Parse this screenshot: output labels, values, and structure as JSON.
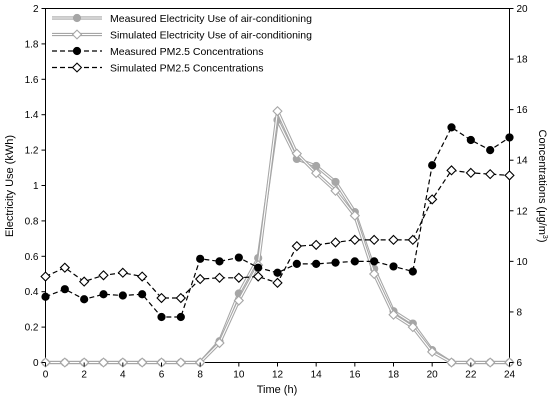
{
  "chart_data": {
    "type": "line",
    "xlabel": "Time (h)",
    "ylabel_left": "Electricity Use (kWh)",
    "ylabel_right_main": "Concentrations (μg/m",
    "ylabel_right_sup": "3",
    "ylabel_right_close": ")",
    "xlim": [
      0,
      24
    ],
    "ylim_left": [
      0,
      2
    ],
    "ylim_right": [
      6,
      20
    ],
    "x_ticks": [
      0,
      2,
      4,
      6,
      8,
      10,
      12,
      14,
      16,
      18,
      20,
      22,
      24
    ],
    "y_left_ticks": [
      0,
      0.2,
      0.4,
      0.6,
      0.8,
      1,
      1.2,
      1.4,
      1.6,
      1.8,
      2
    ],
    "y_right_ticks": [
      6,
      8,
      10,
      12,
      14,
      16,
      18,
      20
    ],
    "x": [
      0,
      1,
      2,
      3,
      4,
      5,
      6,
      7,
      8,
      9,
      10,
      11,
      12,
      13,
      14,
      15,
      16,
      17,
      18,
      19,
      20,
      21,
      22,
      23,
      24
    ],
    "legend_position": "top-left",
    "grid": false,
    "series": [
      {
        "name": "Measured Electricity Use of air-conditioning",
        "axis": "left",
        "marker": "circle",
        "filled": true,
        "dashed": false,
        "double_line": true,
        "color": "#a6a6a6",
        "values": [
          0,
          0,
          0,
          0,
          0,
          0,
          0,
          0,
          0,
          0.12,
          0.39,
          0.59,
          1.37,
          1.15,
          1.11,
          1.02,
          0.85,
          0.53,
          0.29,
          0.22,
          0.07,
          0,
          0,
          0,
          0
        ]
      },
      {
        "name": "Simulated Electricity Use of air-conditioning",
        "axis": "left",
        "marker": "diamond",
        "filled": false,
        "dashed": false,
        "double_line": true,
        "color": "#a6a6a6",
        "values": [
          0,
          0,
          0,
          0,
          0,
          0,
          0,
          0,
          0,
          0.11,
          0.35,
          0.55,
          1.42,
          1.18,
          1.07,
          0.97,
          0.83,
          0.5,
          0.27,
          0.2,
          0.06,
          0,
          0,
          0,
          0
        ]
      },
      {
        "name": "Measured PM2.5 Concentrations",
        "axis": "right",
        "marker": "circle",
        "filled": true,
        "dashed": true,
        "double_line": false,
        "color": "#000000",
        "values": [
          8.6,
          8.9,
          8.5,
          8.7,
          8.65,
          8.7,
          7.8,
          7.8,
          10.1,
          10.0,
          10.15,
          9.75,
          9.55,
          9.9,
          9.9,
          9.95,
          10.0,
          10.0,
          9.8,
          9.6,
          13.8,
          15.3,
          14.8,
          14.4,
          14.9
        ]
      },
      {
        "name": "Simulated PM2.5 Concentrations",
        "axis": "right",
        "marker": "diamond",
        "filled": false,
        "dashed": true,
        "double_line": false,
        "color": "#000000",
        "values": [
          9.4,
          9.75,
          9.2,
          9.45,
          9.55,
          9.4,
          8.55,
          8.55,
          9.3,
          9.35,
          9.35,
          9.4,
          9.15,
          10.6,
          10.65,
          10.75,
          10.85,
          10.85,
          10.85,
          10.85,
          12.45,
          13.6,
          13.5,
          13.45,
          13.4
        ]
      }
    ]
  }
}
